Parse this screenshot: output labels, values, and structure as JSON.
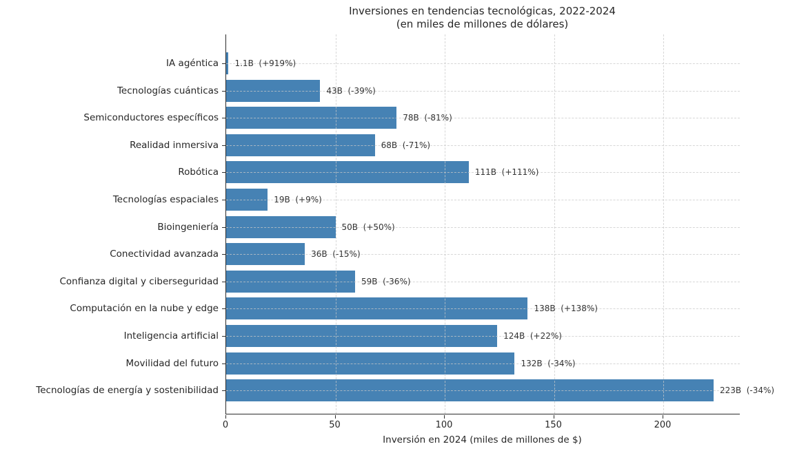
{
  "chart_data": {
    "type": "bar",
    "orientation": "horizontal",
    "title": "Inversiones en tendencias tecnológicas, 2022-2024",
    "subtitle": "(en miles de millones de dólares)",
    "xlabel": "Inversión en 2024 (miles de millones de $)",
    "xlim": [
      0,
      235
    ],
    "xticks": [
      0,
      50,
      100,
      150,
      200
    ],
    "grid": "dashed-both-axes-over-bars",
    "bar_color": "#4682b4",
    "legend": "none",
    "categories": [
      "IA agéntica",
      "Tecnologías cuánticas",
      "Semiconductores específicos",
      "Realidad inmersiva",
      "Robótica",
      "Tecnologías espaciales",
      "Bioingeniería",
      "Conectividad avanzada",
      "Confianza digital y ciberseguridad",
      "Computación en la nube y edge",
      "Inteligencia artificial",
      "Movilidad del futuro",
      "Tecnologías de energía y sostenibilidad"
    ],
    "values": [
      1.1,
      43,
      78,
      68,
      111,
      19,
      50,
      36,
      59,
      138,
      124,
      132,
      223
    ],
    "annotations": [
      "1.1B  (+919%)",
      "43B  (-39%)",
      "78B  (-81%)",
      "68B  (-71%)",
      "111B  (+111%)",
      "19B  (+9%)",
      "50B  (+50%)",
      "36B  (-15%)",
      "59B  (-36%)",
      "138B  (+138%)",
      "124B  (+22%)",
      "132B  (-34%)",
      "223B  (-34%)"
    ]
  }
}
